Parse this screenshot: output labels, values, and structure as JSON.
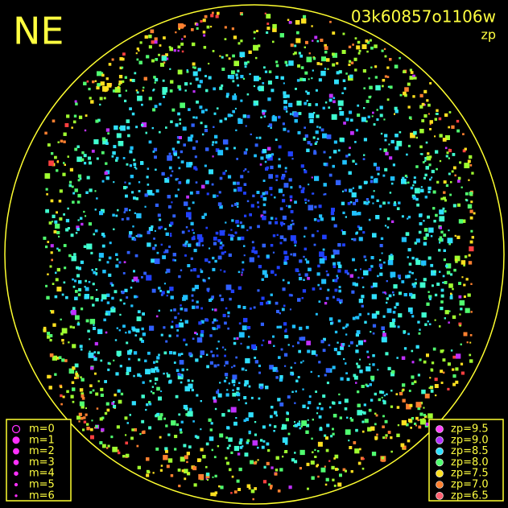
{
  "title": "NE",
  "frame_id": "03k60857o1106w",
  "subtitle": "zp",
  "legend_magnitude": {
    "color": "#ff30ff",
    "items": [
      "m=0",
      "m=1",
      "m=2",
      "m=3",
      "m=4",
      "m=5",
      "m=6"
    ]
  },
  "legend_zp": {
    "items": [
      {
        "label": "zp=9.5",
        "color": "#ff40ff"
      },
      {
        "label": "zp=9.0",
        "color": "#b030ff"
      },
      {
        "label": "zp=8.5",
        "color": "#30e0ff"
      },
      {
        "label": "zp=8.0",
        "color": "#50ff70"
      },
      {
        "label": "zp=7.5",
        "color": "#ffe020"
      },
      {
        "label": "zp=7.0",
        "color": "#ff8030"
      },
      {
        "label": "zp=6.5",
        "color": "#ff6070"
      }
    ]
  }
}
